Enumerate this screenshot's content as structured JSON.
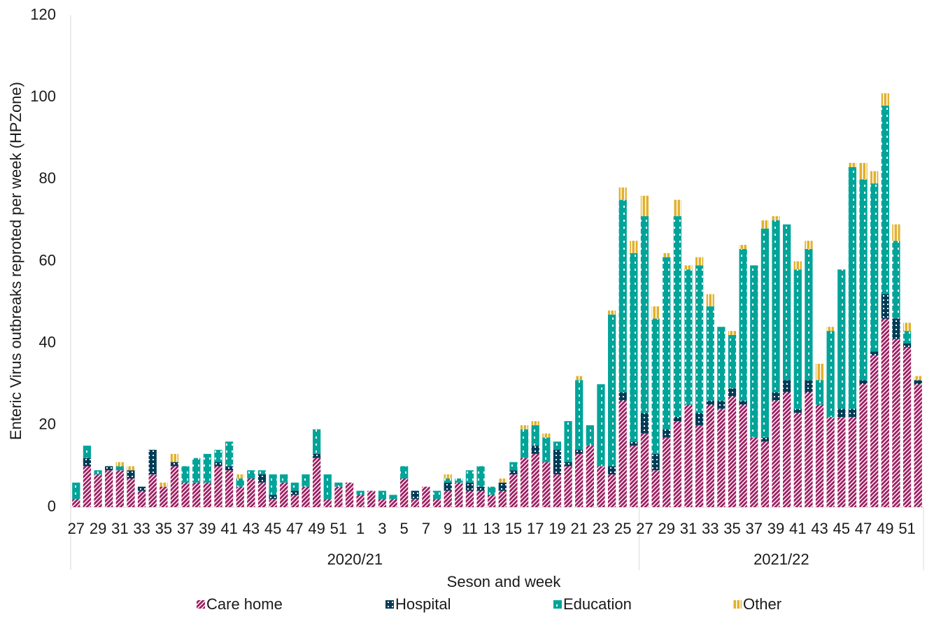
{
  "chart_data": {
    "type": "stacked-bar",
    "y_axis_label": "Enteric Virus outbreaks reproted per week (HPZone)",
    "x_axis_label": "Seson and week",
    "groups": [
      {
        "name": "2020/21",
        "categories": [
          "27",
          null,
          "29",
          null,
          "31",
          null,
          "33",
          null,
          "35",
          null,
          "37",
          null,
          "39",
          null,
          "41",
          null,
          "43",
          null,
          "45",
          null,
          "47",
          null,
          "49",
          null,
          "51",
          null,
          "1",
          null,
          "3",
          null,
          "5",
          null,
          "7",
          null,
          "9",
          null,
          "11",
          null,
          "13",
          null,
          "15",
          null,
          "17",
          null,
          "19",
          null,
          "21",
          null,
          "23",
          null,
          "25",
          null
        ]
      },
      {
        "name": "2021/22",
        "categories": [
          "27",
          null,
          "29",
          null,
          "31",
          null,
          "33",
          null,
          "35",
          null,
          "37",
          null,
          "39",
          null,
          "41",
          null,
          "43",
          null,
          "45",
          null,
          "47",
          null,
          "49",
          null,
          "51",
          null
        ]
      }
    ],
    "series": [
      {
        "name": "Care home",
        "color": "#9e1f63",
        "values": [
          2,
          10,
          8,
          9,
          9,
          7,
          4,
          8,
          5,
          10,
          6,
          6,
          6,
          10,
          9,
          5,
          7,
          6,
          2,
          6,
          3,
          5,
          12,
          2,
          5,
          6,
          3,
          4,
          2,
          2,
          7,
          2,
          5,
          2,
          4,
          6,
          4,
          4,
          3,
          4,
          8,
          12,
          13,
          11,
          8,
          10,
          13,
          15,
          10,
          8,
          26,
          15,
          18,
          9,
          17,
          21,
          25,
          20,
          25,
          24,
          27,
          25,
          17,
          16,
          26,
          28,
          23,
          28,
          25,
          22,
          22,
          22,
          30,
          37,
          46,
          41,
          39,
          30
        ]
      },
      {
        "name": "Hospital",
        "color": "#003c57",
        "values": [
          0,
          2,
          0,
          1,
          0,
          2,
          1,
          6,
          0,
          1,
          0,
          0,
          0,
          1,
          1,
          0,
          0,
          2,
          1,
          0,
          1,
          0,
          1,
          0,
          0,
          0,
          0,
          0,
          0,
          0,
          0,
          2,
          0,
          0,
          2,
          0,
          2,
          1,
          0,
          2,
          1,
          0,
          2,
          0,
          6,
          1,
          1,
          0,
          0,
          2,
          2,
          1,
          5,
          4,
          2,
          1,
          0,
          3,
          1,
          2,
          2,
          1,
          0,
          1,
          2,
          3,
          1,
          3,
          0,
          0,
          2,
          2,
          1,
          1,
          6,
          5,
          1,
          1
        ]
      },
      {
        "name": "Education",
        "color": "#00a499",
        "values": [
          4,
          3,
          1,
          0,
          1,
          0,
          0,
          0,
          0,
          0,
          4,
          6,
          7,
          3,
          6,
          2,
          2,
          1,
          5,
          2,
          2,
          3,
          6,
          6,
          1,
          0,
          1,
          0,
          2,
          1,
          3,
          0,
          0,
          2,
          1,
          1,
          3,
          5,
          2,
          0,
          2,
          7,
          5,
          6,
          2,
          10,
          17,
          5,
          20,
          37,
          47,
          46,
          48,
          33,
          42,
          49,
          33,
          36,
          23,
          18,
          13,
          37,
          42,
          51,
          42,
          38,
          34,
          32,
          6,
          21,
          34,
          59,
          49,
          41,
          46,
          19,
          3,
          0
        ]
      },
      {
        "name": "Other",
        "color": "#e1b12c",
        "values": [
          0,
          0,
          0,
          0,
          1,
          1,
          0,
          0,
          1,
          2,
          0,
          0,
          0,
          0,
          0,
          1,
          0,
          0,
          0,
          0,
          0,
          0,
          0,
          0,
          0,
          0,
          0,
          0,
          0,
          0,
          0,
          0,
          0,
          0,
          1,
          0,
          0,
          0,
          0,
          1,
          0,
          1,
          1,
          1,
          0,
          0,
          1,
          0,
          0,
          1,
          3,
          3,
          5,
          3,
          1,
          4,
          1,
          2,
          3,
          0,
          1,
          1,
          0,
          2,
          1,
          0,
          2,
          2,
          4,
          1,
          0,
          1,
          4,
          3,
          3,
          4,
          2,
          1
        ]
      }
    ],
    "ylim": [
      0,
      120
    ],
    "yticks": [
      0,
      20,
      40,
      60,
      80,
      100,
      120
    ],
    "grid": false,
    "legend": "bottom"
  }
}
